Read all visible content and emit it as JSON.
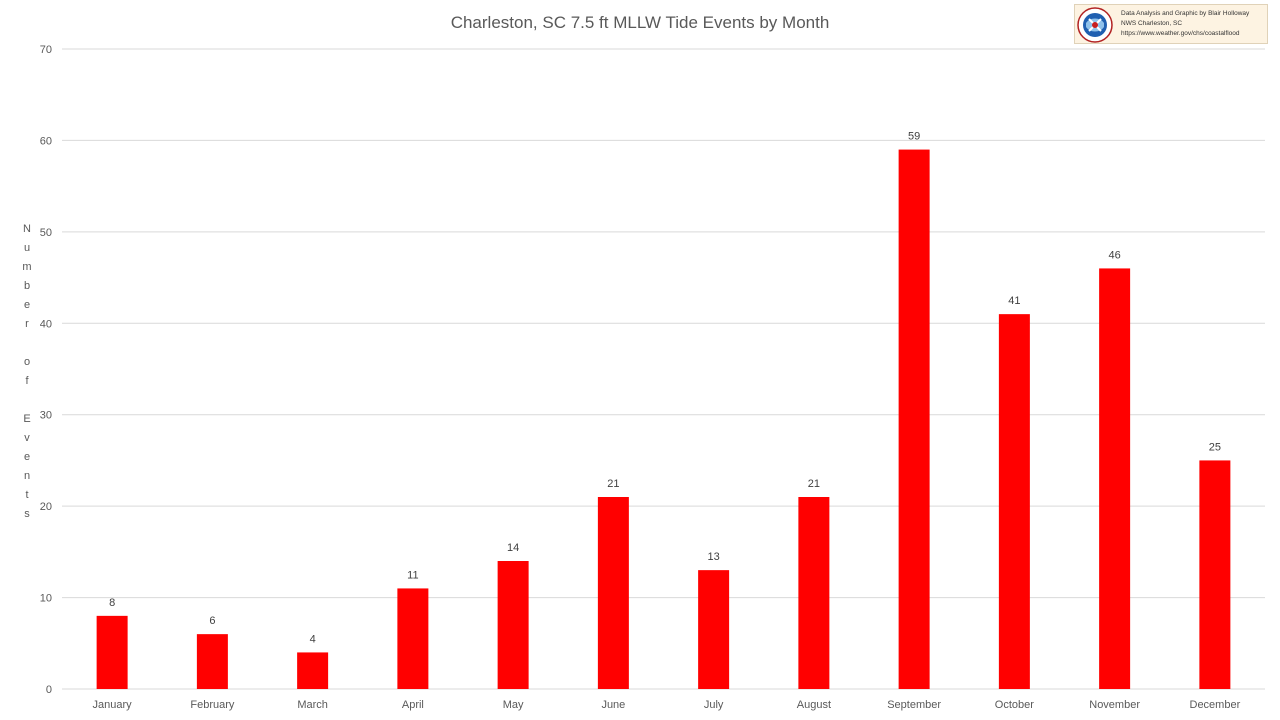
{
  "chart_data": {
    "type": "bar",
    "title": "Charleston, SC 7.5 ft MLLW Tide Events by Month",
    "ylabel": "Number of Events",
    "xlabel": "",
    "categories": [
      "January",
      "February",
      "March",
      "April",
      "May",
      "June",
      "July",
      "August",
      "September",
      "October",
      "November",
      "December"
    ],
    "values": [
      8,
      6,
      4,
      11,
      14,
      21,
      13,
      21,
      59,
      41,
      46,
      25
    ],
    "ylim": [
      0,
      70
    ],
    "yticks": [
      0,
      10,
      20,
      30,
      40,
      50,
      60,
      70
    ],
    "grid": true,
    "legend": "none",
    "bar_color": "#ff0000"
  },
  "credit": {
    "line1": "Data Analysis and Graphic by Blair Holloway",
    "line2": "NWS Charleston, SC",
    "line3": "https://www.weather.gov/chs/coastalflood",
    "logo": "nws-logo-icon"
  }
}
